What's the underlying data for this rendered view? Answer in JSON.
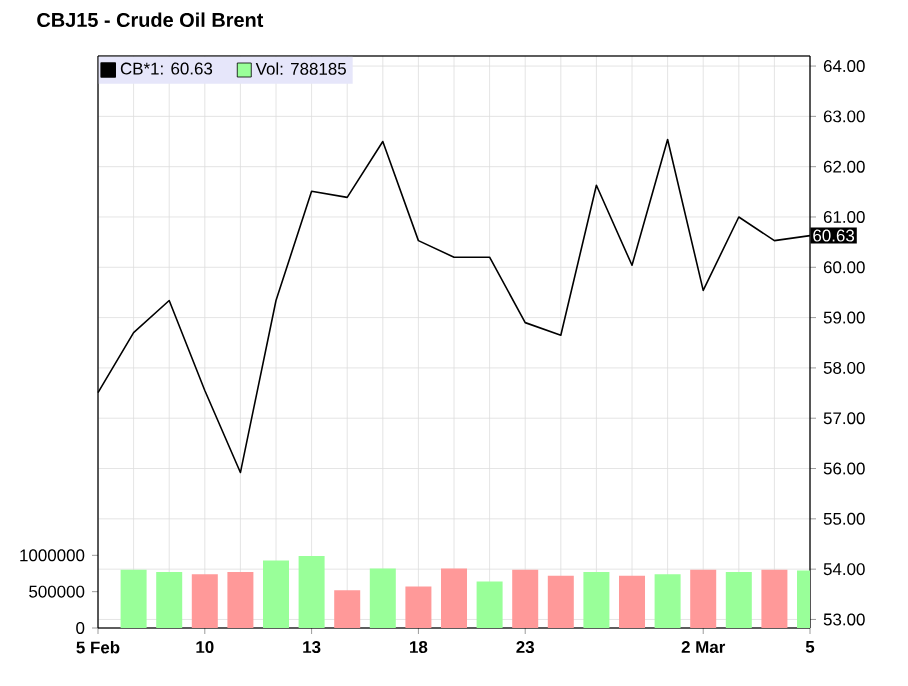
{
  "chart_data": {
    "type": "bar",
    "title": "CBJ15 - Crude Oil Brent",
    "categories": [
      "5 Feb",
      null,
      null,
      "10",
      null,
      null,
      "13",
      null,
      null,
      "18",
      null,
      null,
      "23",
      null,
      null,
      null,
      null,
      "2 Mar",
      null,
      null,
      "5"
    ],
    "series": [
      {
        "name": "CB*1: 60.63",
        "type": "line",
        "axis": "y2",
        "color": "#000000",
        "values": [
          57.51,
          58.7,
          59.34,
          57.55,
          55.92,
          59.34,
          61.51,
          61.39,
          62.5,
          60.53,
          60.2,
          60.2,
          58.9,
          58.65,
          61.63,
          60.04,
          62.54,
          59.54,
          61.0,
          60.53,
          60.63
        ]
      },
      {
        "name": "Vol: 788185",
        "axis": "y",
        "color": "#99ff99",
        "values": [
          null,
          800000,
          770000,
          740000,
          770000,
          930000,
          990000,
          520000,
          820000,
          570000,
          820000,
          640000,
          800000,
          720000,
          770000,
          720000,
          740000,
          800000,
          770000,
          800000,
          790000
        ],
        "colors": [
          "#99ff99",
          "#99ff99",
          "#99ff99",
          "#ff9999",
          "#ff9999",
          "#99ff99",
          "#99ff99",
          "#ff9999",
          "#99ff99",
          "#ff9999",
          "#ff9999",
          "#99ff99",
          "#ff9999",
          "#ff9999",
          "#99ff99",
          "#ff9999",
          "#99ff99",
          "#ff9999",
          "#99ff99",
          "#ff9999",
          "#99ff99"
        ]
      }
    ],
    "ylim": [
      0,
      7870000
    ],
    "yticks": [
      0,
      500000,
      1000000
    ],
    "y2lim": [
      52.83,
      64.2
    ],
    "y2ticks": [
      {
        "value": 53,
        "label": "53.00"
      },
      {
        "value": 54,
        "label": "54.00"
      },
      {
        "value": 55,
        "label": "55.00"
      },
      {
        "value": 56,
        "label": "56.00"
      },
      {
        "value": 57,
        "label": "57.00"
      },
      {
        "value": 58,
        "label": "58.00"
      },
      {
        "value": 59,
        "label": "59.00"
      },
      {
        "value": 60,
        "label": "60.00"
      },
      {
        "value": 61,
        "label": "61.00"
      },
      {
        "value": 62,
        "label": "62.00"
      },
      {
        "value": 63,
        "label": "63.00"
      },
      {
        "value": 64,
        "label": "64.00"
      }
    ],
    "annotations": [
      "60.63"
    ],
    "grid": true,
    "legend": "top left"
  }
}
